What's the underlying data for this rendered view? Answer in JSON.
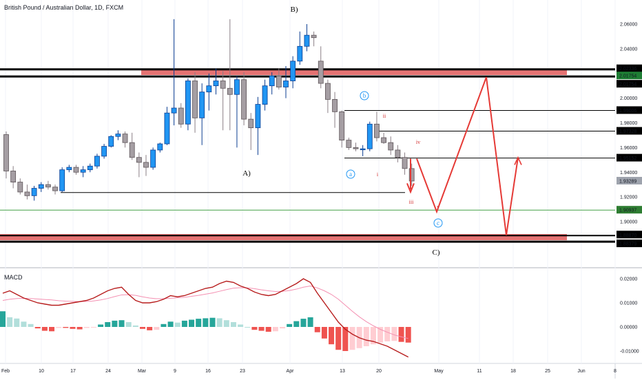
{
  "header": {
    "title": "British Pound / Australian Dollar, 1D, FXCM"
  },
  "macd_panel": {
    "label": "MACD"
  },
  "chart_data": [
    {
      "type": "candlestick",
      "symbol": "GBPAUD",
      "timeframe": "1D",
      "ylim": [
        1.885,
        2.07
      ],
      "y_ticks": [
        "2.06000",
        "2.04000",
        "2.02000",
        "2.00000",
        "1.98000",
        "1.96000",
        "1.94000",
        "1.92000",
        "1.90000"
      ],
      "x_ticks": [
        "Feb",
        "10",
        "17",
        "24",
        "Mar",
        "9",
        "16",
        "23",
        "Apr",
        "13",
        "20",
        "May",
        "11",
        "18",
        "25",
        "Jun",
        "8"
      ],
      "candles": [
        {
          "o": 1.9705,
          "h": 1.973,
          "l": 1.935,
          "c": 1.941
        },
        {
          "o": 1.941,
          "h": 1.945,
          "l": 1.927,
          "c": 1.932
        },
        {
          "o": 1.932,
          "h": 1.935,
          "l": 1.922,
          "c": 1.924
        },
        {
          "o": 1.924,
          "h": 1.93,
          "l": 1.918,
          "c": 1.921
        },
        {
          "o": 1.921,
          "h": 1.929,
          "l": 1.917,
          "c": 1.927
        },
        {
          "o": 1.927,
          "h": 1.932,
          "l": 1.924,
          "c": 1.93
        },
        {
          "o": 1.93,
          "h": 1.933,
          "l": 1.926,
          "c": 1.928
        },
        {
          "o": 1.928,
          "h": 1.93,
          "l": 1.922,
          "c": 1.925
        },
        {
          "o": 1.925,
          "h": 1.944,
          "l": 1.924,
          "c": 1.942
        },
        {
          "o": 1.942,
          "h": 1.946,
          "l": 1.94,
          "c": 1.944
        },
        {
          "o": 1.944,
          "h": 1.946,
          "l": 1.938,
          "c": 1.94
        },
        {
          "o": 1.94,
          "h": 1.945,
          "l": 1.936,
          "c": 1.942
        },
        {
          "o": 1.942,
          "h": 1.947,
          "l": 1.94,
          "c": 1.945
        },
        {
          "o": 1.945,
          "h": 1.955,
          "l": 1.943,
          "c": 1.953
        },
        {
          "o": 1.953,
          "h": 1.963,
          "l": 1.951,
          "c": 1.961
        },
        {
          "o": 1.961,
          "h": 1.97,
          "l": 1.96,
          "c": 1.969
        },
        {
          "o": 1.969,
          "h": 1.974,
          "l": 1.966,
          "c": 1.971
        },
        {
          "o": 1.971,
          "h": 1.973,
          "l": 1.96,
          "c": 1.964
        },
        {
          "o": 1.964,
          "h": 1.972,
          "l": 1.95,
          "c": 1.952
        },
        {
          "o": 1.952,
          "h": 1.956,
          "l": 1.936,
          "c": 1.948
        },
        {
          "o": 1.948,
          "h": 1.954,
          "l": 1.937,
          "c": 1.944
        },
        {
          "o": 1.944,
          "h": 1.96,
          "l": 1.942,
          "c": 1.958
        },
        {
          "o": 1.958,
          "h": 1.964,
          "l": 1.956,
          "c": 1.963
        },
        {
          "o": 1.963,
          "h": 1.993,
          "l": 1.962,
          "c": 1.988
        },
        {
          "o": 1.988,
          "h": 2.064,
          "l": 1.978,
          "c": 1.992
        },
        {
          "o": 1.992,
          "h": 1.996,
          "l": 1.976,
          "c": 1.979
        },
        {
          "o": 1.979,
          "h": 2.016,
          "l": 1.974,
          "c": 2.014
        },
        {
          "o": 2.014,
          "h": 2.021,
          "l": 1.972,
          "c": 1.984
        },
        {
          "o": 1.984,
          "h": 2.012,
          "l": 1.962,
          "c": 2.005
        },
        {
          "o": 2.005,
          "h": 2.02,
          "l": 1.99,
          "c": 2.01
        },
        {
          "o": 2.01,
          "h": 2.024,
          "l": 2.003,
          "c": 2.014
        },
        {
          "o": 2.014,
          "h": 2.022,
          "l": 1.974,
          "c": 2.008
        },
        {
          "o": 2.008,
          "h": 2.064,
          "l": 1.974,
          "c": 2.003
        },
        {
          "o": 2.003,
          "h": 2.018,
          "l": 1.96,
          "c": 2.015
        },
        {
          "o": 2.015,
          "h": 2.021,
          "l": 1.978,
          "c": 1.983
        },
        {
          "o": 1.983,
          "h": 1.988,
          "l": 1.958,
          "c": 1.976
        },
        {
          "o": 1.976,
          "h": 2.001,
          "l": 1.954,
          "c": 1.995
        },
        {
          "o": 1.995,
          "h": 2.015,
          "l": 1.99,
          "c": 2.01
        },
        {
          "o": 2.01,
          "h": 2.021,
          "l": 2.003,
          "c": 2.018
        },
        {
          "o": 2.018,
          "h": 2.024,
          "l": 2.007,
          "c": 2.009
        },
        {
          "o": 2.009,
          "h": 2.026,
          "l": 2.0,
          "c": 2.014
        },
        {
          "o": 2.014,
          "h": 2.034,
          "l": 2.008,
          "c": 2.03
        },
        {
          "o": 2.03,
          "h": 2.054,
          "l": 2.027,
          "c": 2.042
        },
        {
          "o": 2.042,
          "h": 2.06,
          "l": 2.038,
          "c": 2.051
        },
        {
          "o": 2.051,
          "h": 2.054,
          "l": 2.042,
          "c": 2.049
        },
        {
          "o": 2.03,
          "h": 2.042,
          "l": 2.008,
          "c": 2.012
        },
        {
          "o": 2.012,
          "h": 2.015,
          "l": 1.988,
          "c": 1.999
        },
        {
          "o": 1.999,
          "h": 2.005,
          "l": 1.976,
          "c": 1.989
        },
        {
          "o": 1.989,
          "h": 1.99,
          "l": 1.96,
          "c": 1.966
        },
        {
          "o": 1.966,
          "h": 1.968,
          "l": 1.958,
          "c": 1.96
        },
        {
          "o": 1.96,
          "h": 1.964,
          "l": 1.957,
          "c": 1.959
        },
        {
          "o": 1.959,
          "h": 1.962,
          "l": 1.953,
          "c": 1.959
        },
        {
          "o": 1.959,
          "h": 1.981,
          "l": 1.957,
          "c": 1.979
        },
        {
          "o": 1.979,
          "h": 1.989,
          "l": 1.965,
          "c": 1.968
        },
        {
          "o": 1.968,
          "h": 1.972,
          "l": 1.963,
          "c": 1.964
        },
        {
          "o": 1.964,
          "h": 1.969,
          "l": 1.954,
          "c": 1.958
        },
        {
          "o": 1.958,
          "h": 1.962,
          "l": 1.948,
          "c": 1.952
        },
        {
          "o": 1.952,
          "h": 1.956,
          "l": 1.938,
          "c": 1.943
        },
        {
          "o": 1.943,
          "h": 1.947,
          "l": 1.929,
          "c": 1.9329
        }
      ],
      "price_levels": [
        {
          "label": "2.02336",
          "value": 2.02336,
          "color": "#000000",
          "bg": "#000000"
        },
        {
          "label": "2.01754",
          "value": 2.01754,
          "color": "#000000",
          "bg": "#1e7e34"
        },
        {
          "label": "2.01754",
          "value": 2.01754,
          "color": "#000000",
          "bg": "#000000"
        },
        {
          "label": "1.99006",
          "value": 1.99006,
          "color": "#000000",
          "bg": "#000000"
        },
        {
          "label": "1.97328",
          "value": 1.97328,
          "color": "#000000",
          "bg": "#000000"
        },
        {
          "label": "1.95152",
          "value": 1.95152,
          "color": "#000000",
          "bg": "#000000"
        },
        {
          "label": "1.93289",
          "value": 1.93289,
          "color": "#000000",
          "bg": "#9ea3ad"
        },
        {
          "label": "1.90937",
          "value": 1.90937,
          "color": "#43a047",
          "bg": "#2e7d32"
        },
        {
          "label": "1.88870",
          "value": 1.8887,
          "color": "#000000",
          "bg": "#000000"
        },
        {
          "label": "1.88379",
          "value": 1.88379,
          "color": "#000000",
          "bg": "#000000"
        }
      ],
      "wave_labels": [
        {
          "text": "B)",
          "color": "#000000"
        },
        {
          "text": "A)",
          "color": "#000000"
        },
        {
          "text": "C)",
          "color": "#000000"
        },
        {
          "text": "a",
          "color": "#2196f3",
          "circled": true
        },
        {
          "text": "b",
          "color": "#2196f3",
          "circled": true
        },
        {
          "text": "c",
          "color": "#2196f3",
          "circled": true
        },
        {
          "text": "i",
          "color": "#d32f2f"
        },
        {
          "text": "ii",
          "color": "#d32f2f"
        },
        {
          "text": "iii",
          "color": "#d32f2f"
        },
        {
          "text": "iv",
          "color": "#d32f2f"
        },
        {
          "text": "v",
          "color": "#d32f2f"
        }
      ]
    },
    {
      "type": "macd",
      "name": "MACD",
      "ylim": [
        -0.013,
        0.022
      ],
      "y_ticks": [
        "0.02000",
        "0.01000",
        "0.00000",
        "-0.01000"
      ],
      "macd_line": [
        0.014,
        0.015,
        0.0135,
        0.012,
        0.011,
        0.01,
        0.0095,
        0.009,
        0.009,
        0.0095,
        0.01,
        0.0105,
        0.011,
        0.012,
        0.0135,
        0.015,
        0.016,
        0.0165,
        0.0135,
        0.011,
        0.01,
        0.01,
        0.0105,
        0.0115,
        0.013,
        0.0125,
        0.013,
        0.014,
        0.015,
        0.016,
        0.0165,
        0.018,
        0.019,
        0.0185,
        0.017,
        0.016,
        0.0145,
        0.0135,
        0.013,
        0.0135,
        0.015,
        0.0165,
        0.018,
        0.02,
        0.0185,
        0.014,
        0.01,
        0.006,
        0.002,
        -0.001,
        -0.003,
        -0.0045,
        -0.0055,
        -0.006,
        -0.007,
        -0.008,
        -0.0095,
        -0.011,
        -0.0125
      ],
      "signal_line": [
        0.011,
        0.0115,
        0.0118,
        0.0119,
        0.0118,
        0.0116,
        0.0114,
        0.0112,
        0.0109,
        0.0107,
        0.0106,
        0.0105,
        0.0106,
        0.0108,
        0.0112,
        0.0118,
        0.0126,
        0.0133,
        0.0134,
        0.0131,
        0.0125,
        0.012,
        0.0117,
        0.0117,
        0.0119,
        0.0121,
        0.0123,
        0.0127,
        0.0131,
        0.0136,
        0.0141,
        0.0148,
        0.0155,
        0.0161,
        0.0163,
        0.0162,
        0.0159,
        0.0154,
        0.015,
        0.0147,
        0.0148,
        0.0151,
        0.0157,
        0.0165,
        0.017,
        0.0162,
        0.015,
        0.0135,
        0.0115,
        0.009,
        0.0065,
        0.0042,
        0.0022,
        0.0005,
        -0.001,
        -0.0022,
        -0.0033,
        -0.0041,
        -0.0048
      ],
      "histogram": [
        0.0065,
        0.004,
        0.0035,
        0.0022,
        0.0012,
        -0.0006,
        -0.0016,
        -0.0018,
        -0.0004,
        -0.0004,
        -0.0008,
        -0.001,
        -0.0004,
        -0.0002,
        0.001,
        0.002,
        0.0026,
        0.0028,
        0.002,
        0.0006,
        -0.0008,
        -0.0014,
        -0.0012,
        0.0012,
        0.0022,
        0.0018,
        0.0026,
        0.003,
        0.0034,
        0.0036,
        0.0038,
        0.0036,
        0.0028,
        0.002,
        0.001,
        0.0,
        -0.0012,
        -0.0016,
        -0.002,
        -0.0018,
        -0.0006,
        0.0012,
        0.0024,
        0.0034,
        0.004,
        -0.0022,
        -0.0048,
        -0.0072,
        -0.0095,
        -0.01,
        -0.0095,
        -0.0088,
        -0.008,
        -0.0072,
        -0.0065,
        -0.006,
        -0.0058,
        -0.0062,
        -0.0065
      ]
    }
  ]
}
